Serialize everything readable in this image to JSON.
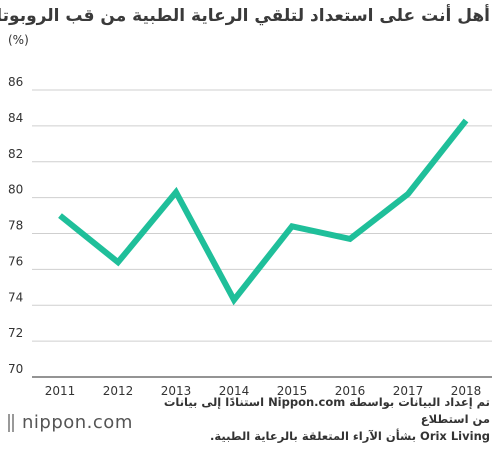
{
  "title": "أهل أنت على استعداد لتلقي الرعاية الطبية من قب الروبوتات",
  "source_line1": "تم إعداد البيانات بواسطة Nippon.com استنادًا إلى بيانات من استطلاع",
  "source_line2": "Orix Living بشأن الآراء المتعلقة بالرعاية الطبية.",
  "logo_text": "nippon.com",
  "colors": {
    "line": "#1fbf9a",
    "grid": "#cfcfcf",
    "text": "#333333"
  },
  "chart_data": {
    "type": "line",
    "title": "أهل أنت على استعداد لتلقي الرعاية الطبية من قب الروبوتات",
    "ylabel": "(%)",
    "xlabel": "",
    "categories": [
      "2011",
      "2012",
      "2013",
      "2014",
      "2015",
      "2016",
      "2017",
      "2018"
    ],
    "values": [
      79.0,
      76.4,
      80.3,
      74.3,
      78.4,
      77.7,
      80.2,
      84.3
    ],
    "ylim": [
      70,
      86
    ],
    "yticks": [
      70,
      72,
      74,
      76,
      78,
      80,
      82,
      84,
      86
    ],
    "grid": true,
    "legend": "none"
  }
}
